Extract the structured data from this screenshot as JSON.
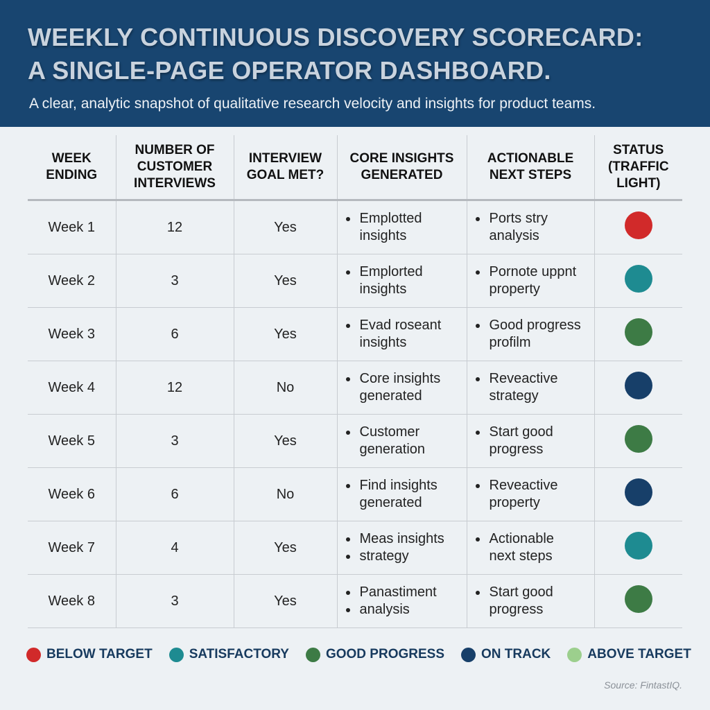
{
  "header": {
    "title_line1": "WEEKLY CONTINUOUS DISCOVERY SCORECARD:",
    "title_line2": "A SINGLE-PAGE OPERATOR DASHBOARD.",
    "subtitle": "A clear, analytic snapshot of qualitative research velocity and insights for product teams."
  },
  "table": {
    "columns": [
      "WEEK ENDING",
      "NUMBER OF CUSTOMER INTERVIEWS",
      "INTERVIEW GOAL MET?",
      "CORE INSIGHTS GENERATED",
      "ACTIONABLE NEXT STEPS",
      "STATUS (TRAFFIC LIGHT)"
    ],
    "rows": [
      {
        "week": "Week 1",
        "interviews": "12",
        "goal": "Yes",
        "insights": [
          "Emplotted",
          "insights"
        ],
        "insights_bullets": [
          true,
          false
        ],
        "steps": [
          "Ports stry",
          "analysis"
        ],
        "steps_bullets": [
          true,
          false
        ],
        "status": "below-target"
      },
      {
        "week": "Week 2",
        "interviews": "3",
        "goal": "Yes",
        "insights": [
          "Emplorted",
          "insights"
        ],
        "insights_bullets": [
          true,
          false
        ],
        "steps": [
          "Pornote uppnt",
          "property"
        ],
        "steps_bullets": [
          true,
          false
        ],
        "status": "satisfactory"
      },
      {
        "week": "Week 3",
        "interviews": "6",
        "goal": "Yes",
        "insights": [
          "Evad roseant",
          "insights"
        ],
        "insights_bullets": [
          true,
          false
        ],
        "steps": [
          "Good progress",
          "profilm"
        ],
        "steps_bullets": [
          true,
          false
        ],
        "status": "good-progress"
      },
      {
        "week": "Week 4",
        "interviews": "12",
        "goal": "No",
        "insights": [
          "Core insights",
          "generated"
        ],
        "insights_bullets": [
          true,
          false
        ],
        "steps": [
          "Reveactive",
          "strategy"
        ],
        "steps_bullets": [
          true,
          false
        ],
        "status": "on-track"
      },
      {
        "week": "Week 5",
        "interviews": "3",
        "goal": "Yes",
        "insights": [
          "Customer",
          "generation"
        ],
        "insights_bullets": [
          true,
          false
        ],
        "steps": [
          "Start good",
          "progress"
        ],
        "steps_bullets": [
          true,
          false
        ],
        "status": "good-progress"
      },
      {
        "week": "Week 6",
        "interviews": "6",
        "goal": "No",
        "insights": [
          "Find insights",
          "generated"
        ],
        "insights_bullets": [
          true,
          false
        ],
        "steps": [
          "Reveactive",
          "property"
        ],
        "steps_bullets": [
          true,
          false
        ],
        "status": "on-track"
      },
      {
        "week": "Week 7",
        "interviews": "4",
        "goal": "Yes",
        "insights": [
          "Meas insights",
          "strategy"
        ],
        "insights_bullets": [
          true,
          true
        ],
        "steps": [
          " Actionable",
          "next steps"
        ],
        "steps_bullets": [
          true,
          false
        ],
        "status": "satisfactory"
      },
      {
        "week": "Week 8",
        "interviews": "3",
        "goal": "Yes",
        "insights": [
          "Panastiment",
          "analysis"
        ],
        "insights_bullets": [
          true,
          true
        ],
        "steps": [
          "Start good",
          "progress"
        ],
        "steps_bullets": [
          true,
          false
        ],
        "status": "good-progress"
      }
    ]
  },
  "status_colors": {
    "below-target": "#d12a2a",
    "satisfactory": "#1e8b91",
    "good-progress": "#3d7b45",
    "on-track": "#173f69",
    "above-target": "#9ccf8d"
  },
  "legend": [
    {
      "key": "below-target",
      "label": "BELOW TARGET"
    },
    {
      "key": "satisfactory",
      "label": "SATISFACTORY"
    },
    {
      "key": "good-progress",
      "label": "GOOD PROGRESS"
    },
    {
      "key": "on-track",
      "label": "ON TRACK"
    },
    {
      "key": "above-target",
      "label": "ABOVE TARGET"
    }
  ],
  "source": "Source: FintastIQ."
}
